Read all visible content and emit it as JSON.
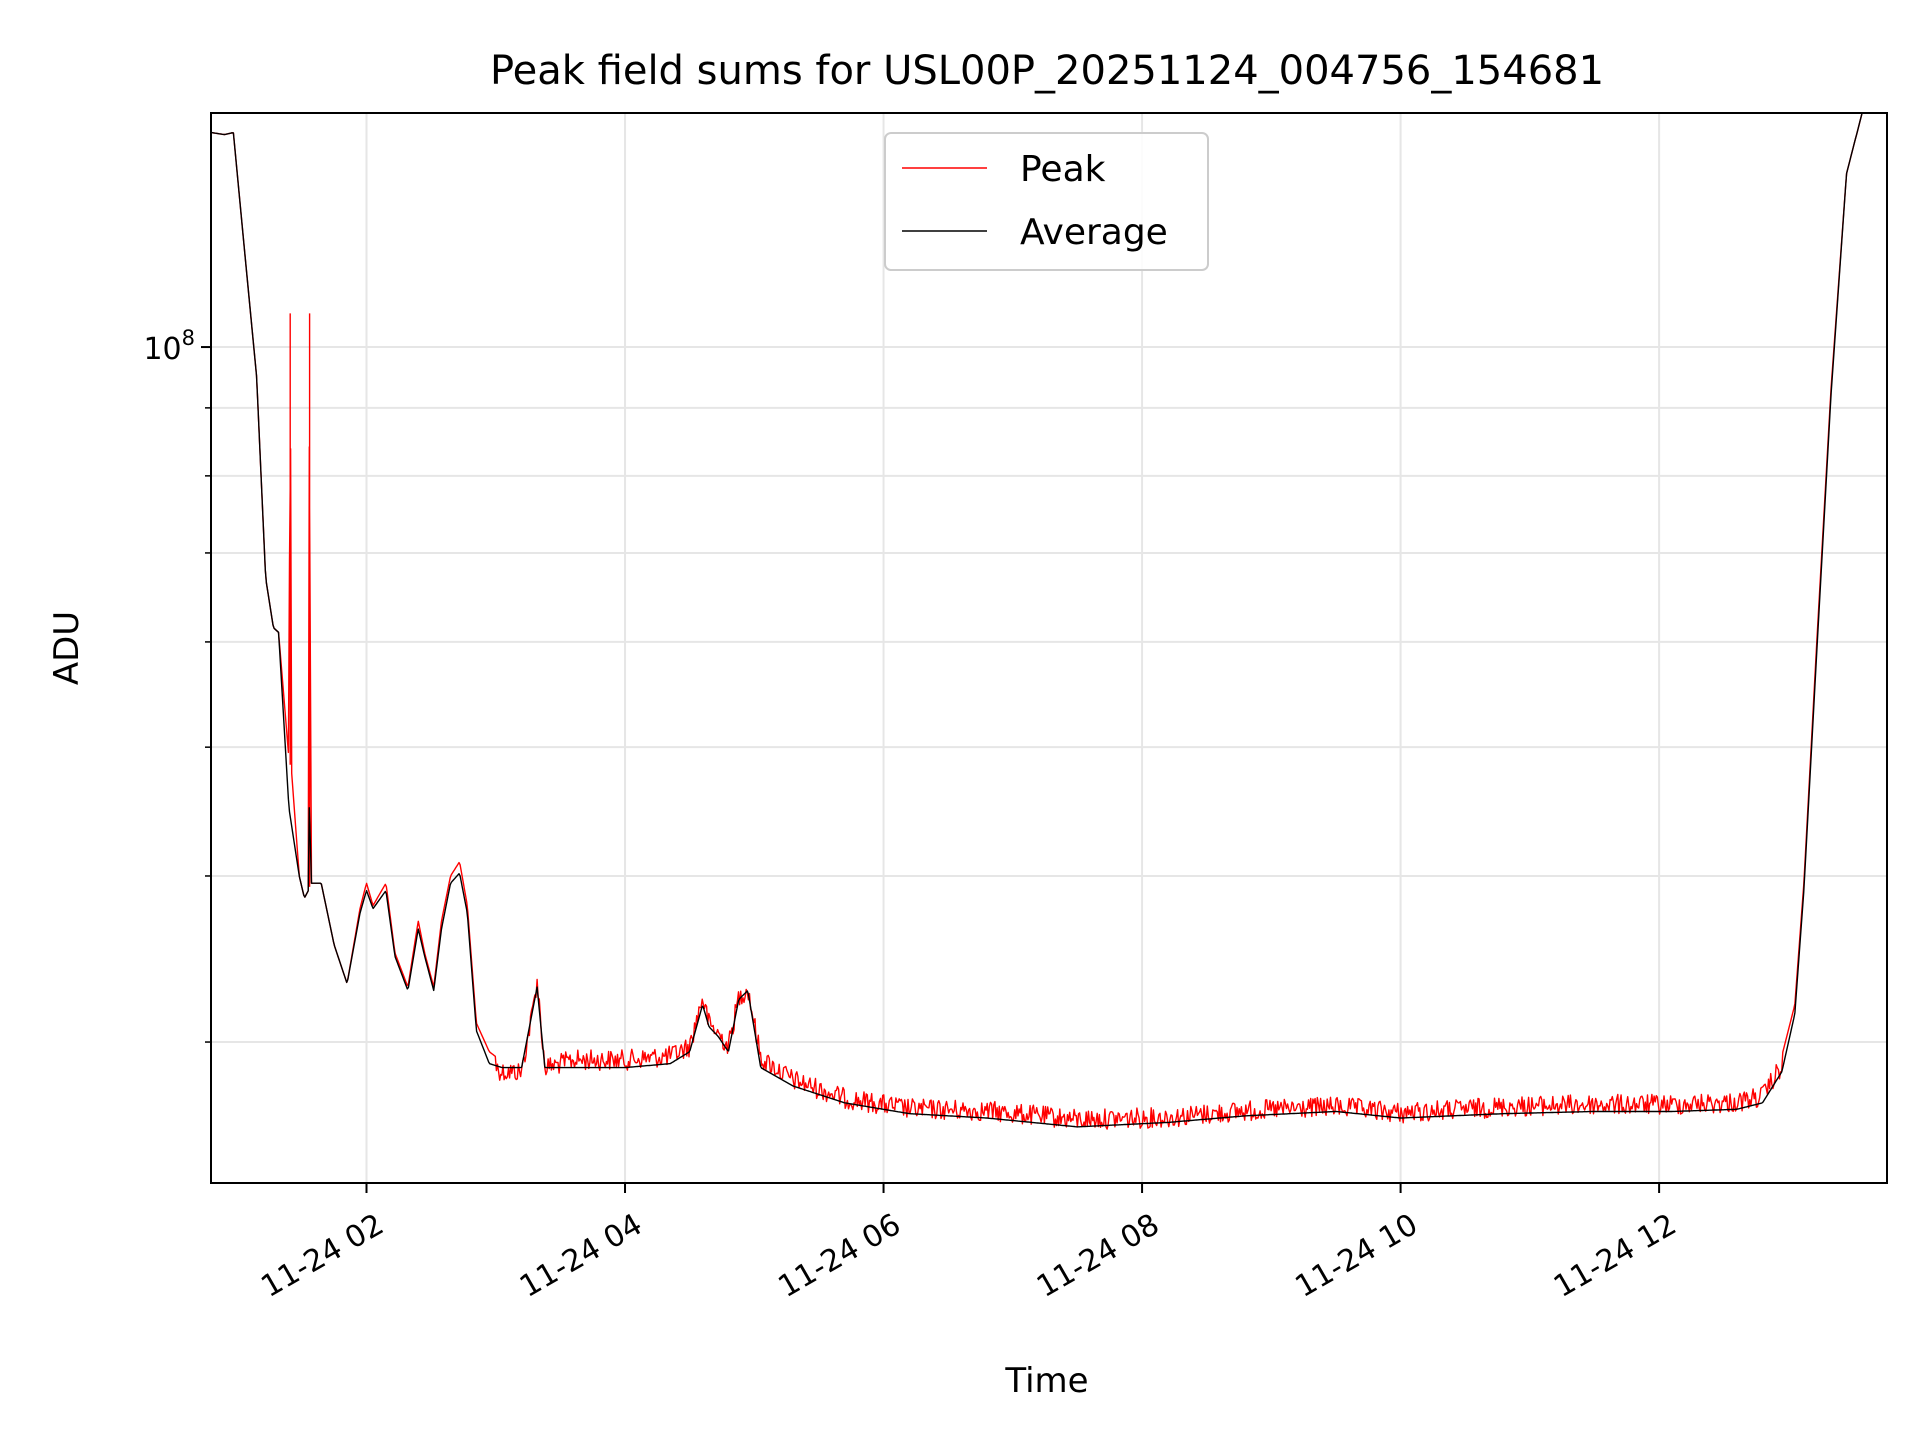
{
  "chart_data": {
    "type": "line",
    "title": "Peak field sums for USL00P_20251124_004756_154681",
    "xlabel": "Time",
    "ylabel": "ADU",
    "yscale": "log",
    "ylim": [
      23500000,
      150000000
    ],
    "xlim_hours": [
      0.797,
      13.763
    ],
    "grid": true,
    "legend_position": "upper center",
    "x_ticks": [
      {
        "hour": 2,
        "label": "11-24 02"
      },
      {
        "hour": 4,
        "label": "11-24 04"
      },
      {
        "hour": 6,
        "label": "11-24 06"
      },
      {
        "hour": 8,
        "label": "11-24 08"
      },
      {
        "hour": 10,
        "label": "11-24 10"
      },
      {
        "hour": 12,
        "label": "11-24 12"
      }
    ],
    "y_major_ticks": [
      {
        "value": 100000000,
        "base": "10",
        "exponent": "8"
      }
    ],
    "y_minor_ticks": [
      30000000,
      40000000,
      50000000,
      60000000,
      70000000,
      80000000,
      90000000,
      200000000
    ],
    "series": [
      {
        "name": "Peak",
        "color": "#ff0000",
        "noise": true,
        "points": [
          [
            0.8,
            145000000
          ],
          [
            0.9,
            144500000
          ],
          [
            0.97,
            145000000
          ],
          [
            1.05,
            120000000
          ],
          [
            1.15,
            95000000
          ],
          [
            1.22,
            67000000
          ],
          [
            1.28,
            61500000
          ],
          [
            1.32,
            61000000
          ],
          [
            1.4,
            49000000
          ],
          [
            1.41,
            106000000
          ],
          [
            1.42,
            48000000
          ],
          [
            1.48,
            40000000
          ],
          [
            1.52,
            38500000
          ],
          [
            1.55,
            39000000
          ],
          [
            1.56,
            106000000
          ],
          [
            1.57,
            39500000
          ],
          [
            1.65,
            39500000
          ],
          [
            1.75,
            35500000
          ],
          [
            1.85,
            33200000
          ],
          [
            1.95,
            37800000
          ],
          [
            2.0,
            39500000
          ],
          [
            2.05,
            38000000
          ],
          [
            2.15,
            39500000
          ],
          [
            2.22,
            35000000
          ],
          [
            2.32,
            33000000
          ],
          [
            2.4,
            37000000
          ],
          [
            2.45,
            35000000
          ],
          [
            2.52,
            33000000
          ],
          [
            2.58,
            37000000
          ],
          [
            2.65,
            40000000
          ],
          [
            2.72,
            41000000
          ],
          [
            2.78,
            38000000
          ],
          [
            2.85,
            31000000
          ],
          [
            2.95,
            29500000
          ],
          [
            3.05,
            29000000
          ],
          [
            3.2,
            29000000
          ],
          [
            3.28,
            32000000
          ],
          [
            3.32,
            34000000
          ],
          [
            3.38,
            29200000
          ],
          [
            3.6,
            29600000
          ],
          [
            4.0,
            29600000
          ],
          [
            4.35,
            29800000
          ],
          [
            4.5,
            30300000
          ],
          [
            4.6,
            33000000
          ],
          [
            4.65,
            31500000
          ],
          [
            4.72,
            31000000
          ],
          [
            4.8,
            30300000
          ],
          [
            4.88,
            33000000
          ],
          [
            4.95,
            33500000
          ],
          [
            5.05,
            29700000
          ],
          [
            5.3,
            28600000
          ],
          [
            5.7,
            27700000
          ],
          [
            6.2,
            27200000
          ],
          [
            6.8,
            27100000
          ],
          [
            7.5,
            26700000
          ],
          [
            8.2,
            26800000
          ],
          [
            8.8,
            27100000
          ],
          [
            9.5,
            27300000
          ],
          [
            10.0,
            27000000
          ],
          [
            10.8,
            27300000
          ],
          [
            11.5,
            27400000
          ],
          [
            12.1,
            27400000
          ],
          [
            12.6,
            27500000
          ],
          [
            12.8,
            27800000
          ],
          [
            12.95,
            29300000
          ],
          [
            13.05,
            32000000
          ],
          [
            13.12,
            39500000
          ],
          [
            13.22,
            60000000
          ],
          [
            13.33,
            93000000
          ],
          [
            13.45,
            135000000
          ],
          [
            13.57,
            150000000
          ]
        ]
      },
      {
        "name": "Average",
        "color": "#000000",
        "noise": false,
        "points": [
          [
            0.8,
            145000000
          ],
          [
            0.9,
            144500000
          ],
          [
            0.97,
            145000000
          ],
          [
            1.05,
            120000000
          ],
          [
            1.15,
            95000000
          ],
          [
            1.22,
            67000000
          ],
          [
            1.28,
            61500000
          ],
          [
            1.32,
            61000000
          ],
          [
            1.4,
            45000000
          ],
          [
            1.48,
            40000000
          ],
          [
            1.52,
            38500000
          ],
          [
            1.55,
            39000000
          ],
          [
            1.56,
            47000000
          ],
          [
            1.57,
            39500000
          ],
          [
            1.65,
            39500000
          ],
          [
            1.75,
            35500000
          ],
          [
            1.85,
            33200000
          ],
          [
            1.95,
            37500000
          ],
          [
            2.0,
            39000000
          ],
          [
            2.05,
            37800000
          ],
          [
            2.15,
            39000000
          ],
          [
            2.22,
            34800000
          ],
          [
            2.32,
            32800000
          ],
          [
            2.4,
            36500000
          ],
          [
            2.45,
            34800000
          ],
          [
            2.52,
            32800000
          ],
          [
            2.58,
            36500000
          ],
          [
            2.65,
            39500000
          ],
          [
            2.72,
            40200000
          ],
          [
            2.78,
            37500000
          ],
          [
            2.85,
            30600000
          ],
          [
            2.95,
            28900000
          ],
          [
            3.05,
            28700000
          ],
          [
            3.2,
            28700000
          ],
          [
            3.28,
            31500000
          ],
          [
            3.32,
            33000000
          ],
          [
            3.38,
            28700000
          ],
          [
            3.6,
            28700000
          ],
          [
            4.0,
            28700000
          ],
          [
            4.35,
            28900000
          ],
          [
            4.5,
            29500000
          ],
          [
            4.6,
            32000000
          ],
          [
            4.65,
            30800000
          ],
          [
            4.72,
            30300000
          ],
          [
            4.8,
            29500000
          ],
          [
            4.88,
            32300000
          ],
          [
            4.95,
            32800000
          ],
          [
            5.05,
            28700000
          ],
          [
            5.3,
            27800000
          ],
          [
            5.7,
            27000000
          ],
          [
            6.2,
            26500000
          ],
          [
            6.8,
            26300000
          ],
          [
            7.5,
            25900000
          ],
          [
            8.2,
            26100000
          ],
          [
            8.8,
            26400000
          ],
          [
            9.5,
            26600000
          ],
          [
            10.0,
            26300000
          ],
          [
            10.8,
            26500000
          ],
          [
            11.5,
            26600000
          ],
          [
            12.1,
            26600000
          ],
          [
            12.6,
            26700000
          ],
          [
            12.8,
            27000000
          ],
          [
            12.95,
            28500000
          ],
          [
            13.05,
            31500000
          ],
          [
            13.12,
            39000000
          ],
          [
            13.22,
            59000000
          ],
          [
            13.33,
            92000000
          ],
          [
            13.45,
            135000000
          ],
          [
            13.57,
            150000000
          ]
        ]
      }
    ]
  }
}
